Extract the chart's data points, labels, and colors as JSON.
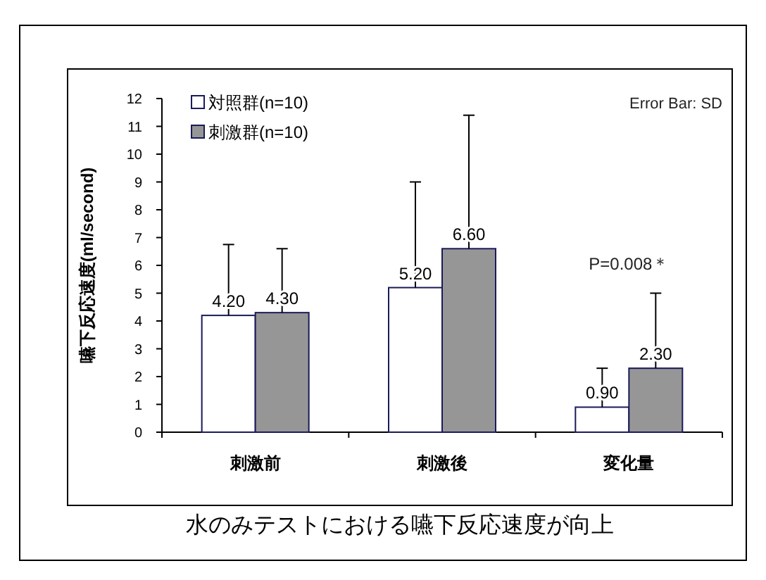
{
  "chart_data": {
    "type": "bar",
    "title": "水のみテストにおける嚥下反応速度が向上",
    "ylabel": "嚥下反応速度(ml/second)",
    "categories": [
      "刺激前",
      "刺激後",
      "変化量"
    ],
    "series": [
      {
        "name": "対照群(n=10)",
        "color": "#ffffff",
        "values": [
          4.2,
          5.2,
          0.9
        ],
        "errors": [
          [
            4.2,
            6.75
          ],
          [
            5.2,
            9.0
          ],
          [
            0.9,
            2.3
          ]
        ],
        "value_labels": [
          "4.20",
          "5.20",
          "0.90"
        ]
      },
      {
        "name": "刺激群(n=10)",
        "color": "#969696",
        "values": [
          4.3,
          6.6,
          2.3
        ],
        "errors": [
          [
            4.3,
            6.6
          ],
          [
            6.6,
            11.4
          ],
          [
            2.3,
            5.0
          ]
        ],
        "value_labels": [
          "4.30",
          "6.60",
          "2.30"
        ]
      }
    ],
    "ylim": [
      0,
      12
    ],
    "yticks": [
      0,
      1,
      2,
      3,
      4,
      5,
      6,
      7,
      8,
      9,
      10,
      11,
      12
    ],
    "legend": "top left",
    "grid": false,
    "annotations": [
      "Error Bar: SD",
      "P=0.008＊"
    ]
  }
}
